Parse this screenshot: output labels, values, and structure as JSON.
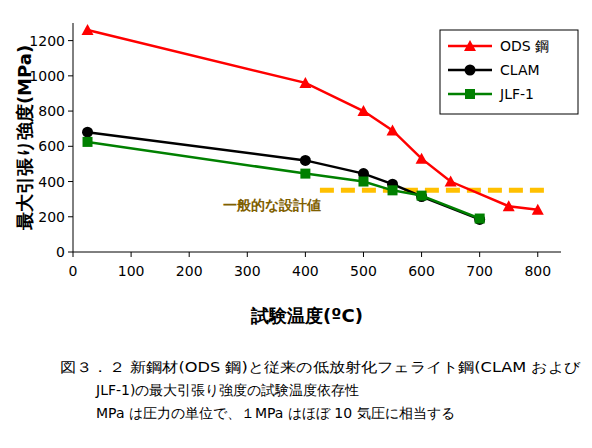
{
  "chart_data": {
    "type": "line",
    "x_label": "試験温度(ºC)",
    "y_label": "最大引張り強度(MPa)",
    "xlim": [
      0,
      840
    ],
    "xticks": [
      0,
      100,
      200,
      300,
      400,
      500,
      600,
      700,
      800
    ],
    "ylim": [
      0,
      1300
    ],
    "yticks": [
      0,
      200,
      400,
      600,
      800,
      1000,
      1200
    ],
    "grid": false,
    "legend": "upper right",
    "series": [
      {
        "name": "ODS 鋼",
        "color": "#ff0000",
        "marker": "triangle",
        "line_style": "solid",
        "x": [
          25,
          400,
          500,
          550,
          600,
          650,
          750,
          800
        ],
        "values": [
          1260,
          960,
          800,
          690,
          530,
          400,
          260,
          240
        ]
      },
      {
        "name": "CLAM",
        "color": "#000000",
        "marker": "circle",
        "line_style": "solid",
        "x": [
          25,
          400,
          500,
          550,
          600,
          700
        ],
        "values": [
          680,
          520,
          445,
          385,
          315,
          185
        ]
      },
      {
        "name": "JLF-1",
        "color": "#008000",
        "marker": "square",
        "line_style": "solid",
        "x": [
          25,
          400,
          500,
          550,
          600,
          700
        ],
        "values": [
          625,
          445,
          400,
          350,
          320,
          190
        ]
      }
    ],
    "reference_lines": [
      {
        "label": "一般的な設計値",
        "value": 350,
        "x": [
          425,
          820
        ],
        "color": "#ffc000",
        "line_style": "dashed"
      }
    ],
    "caption": [
      "図３．２ 新鋼材(ODS 鋼)と従来の低放射化フェライト鋼(CLAM および",
      "JLF-1)の最大引張り強度の試験温度依存性",
      "MPa は圧力の単位で、１MPa はほぼ 10 気圧に相当する"
    ]
  }
}
